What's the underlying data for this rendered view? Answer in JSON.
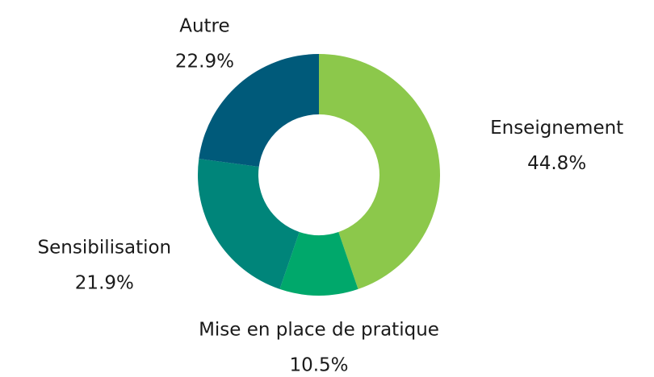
{
  "chart_data": {
    "type": "donut",
    "categories": [
      "Enseignement",
      "Mise en place de pratique",
      "Sensibilisation",
      "Autre"
    ],
    "values": [
      44.8,
      10.5,
      21.9,
      22.9
    ],
    "value_labels": [
      "44.8%",
      "10.5%",
      "21.9%",
      "22.9%"
    ],
    "colors": [
      "#8cc84b",
      "#00a86b",
      "#00857a",
      "#005a7a"
    ]
  }
}
